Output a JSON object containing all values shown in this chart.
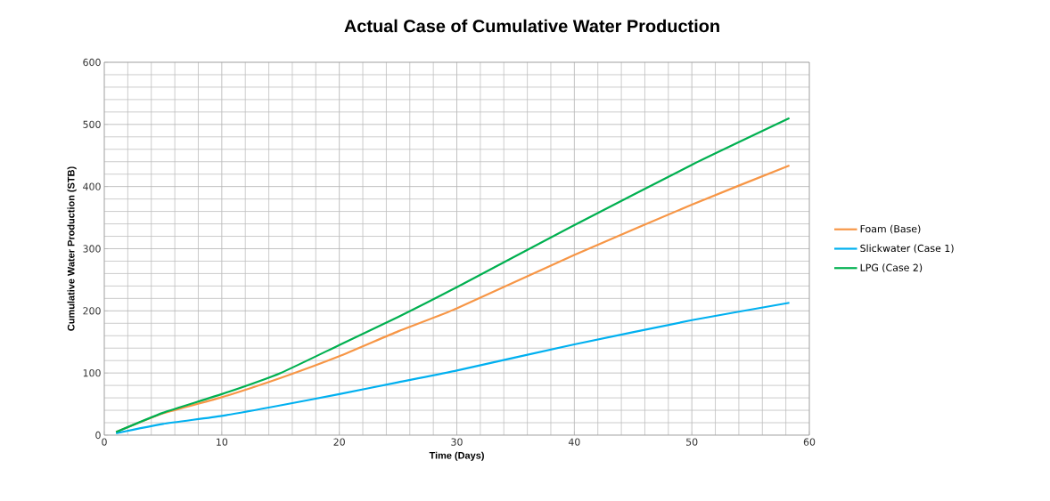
{
  "chart_data": {
    "type": "line",
    "title": "Actual Case of Cumulative Water Production",
    "xlabel": "Time (Days)",
    "ylabel": "Cumulative Water Production (STB)",
    "xlim": [
      0,
      60
    ],
    "xticks": [
      0,
      10,
      20,
      30,
      40,
      50,
      60
    ],
    "ylim": [
      0,
      600
    ],
    "yticks": [
      0,
      100,
      200,
      300,
      400,
      500,
      600
    ],
    "grid": true,
    "legend": "right",
    "marker": "none",
    "line_style": "solid",
    "series": [
      {
        "name": "Foam (Base)",
        "color": "#f79646",
        "x": [
          1,
          5,
          10,
          15,
          20,
          25,
          30,
          40,
          50,
          58.3
        ],
        "values": [
          5,
          35,
          61,
          92,
          127,
          167,
          204,
          290,
          371,
          434
        ]
      },
      {
        "name": "Slickwater (Case 1)",
        "color": "#00b0f0",
        "x": [
          1,
          5,
          10,
          15,
          20,
          25,
          30,
          40,
          50,
          58.3
        ],
        "values": [
          3,
          18,
          31,
          48,
          66,
          85,
          104,
          146,
          185,
          213
        ]
      },
      {
        "name": "LPG (Case 2)",
        "color": "#00b050",
        "x": [
          1,
          5,
          10,
          15,
          20,
          25,
          30,
          40,
          50,
          58.3
        ],
        "values": [
          5,
          36,
          66,
          100,
          145,
          190,
          238,
          338,
          435,
          510
        ]
      }
    ]
  }
}
